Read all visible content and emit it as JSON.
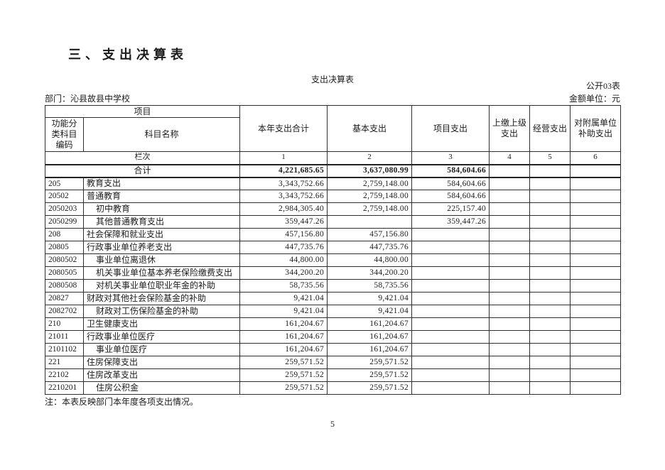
{
  "page": {
    "section_title": "三、支出决算表",
    "table_title": "支出决算表",
    "form_code": "公开03表",
    "department": "部门：沁县故县中学校",
    "unit": "金额单位：元",
    "note": "注：本表反映部门本年度各项支出情况。",
    "page_number": "5"
  },
  "table": {
    "header": {
      "project": "项目",
      "code": "功能分类科目编码",
      "subject_name": "科目名称",
      "col_total": "本年支出合计",
      "col_basic": "基本支出",
      "col_project": "项目支出",
      "col_upper": "上缴上级支出",
      "col_operating": "经营支出",
      "col_subsidy": "对附属单位补助支出",
      "row_label": "栏次",
      "column_numbers": [
        "1",
        "2",
        "3",
        "4",
        "5",
        "6"
      ]
    },
    "total_row": {
      "label": "合计",
      "values": [
        "4,221,685.65",
        "3,637,080.99",
        "584,604.66",
        "",
        "",
        ""
      ]
    },
    "rows": [
      {
        "code": "205",
        "name": "教育支出",
        "indent": 0,
        "values": [
          "3,343,752.66",
          "2,759,148.00",
          "584,604.66",
          "",
          "",
          ""
        ]
      },
      {
        "code": "20502",
        "name": "普通教育",
        "indent": 0,
        "values": [
          "3,343,752.66",
          "2,759,148.00",
          "584,604.66",
          "",
          "",
          ""
        ]
      },
      {
        "code": "2050203",
        "name": "初中教育",
        "indent": 1,
        "values": [
          "2,984,305.40",
          "2,759,148.00",
          "225,157.40",
          "",
          "",
          ""
        ]
      },
      {
        "code": "2050299",
        "name": "其他普通教育支出",
        "indent": 1,
        "values": [
          "359,447.26",
          "",
          "359,447.26",
          "",
          "",
          ""
        ]
      },
      {
        "code": "208",
        "name": "社会保障和就业支出",
        "indent": 0,
        "values": [
          "457,156.80",
          "457,156.80",
          "",
          "",
          "",
          ""
        ]
      },
      {
        "code": "20805",
        "name": "行政事业单位养老支出",
        "indent": 0,
        "values": [
          "447,735.76",
          "447,735.76",
          "",
          "",
          "",
          ""
        ]
      },
      {
        "code": "2080502",
        "name": "事业单位离退休",
        "indent": 1,
        "values": [
          "44,800.00",
          "44,800.00",
          "",
          "",
          "",
          ""
        ]
      },
      {
        "code": "2080505",
        "name": "机关事业单位基本养老保险缴费支出",
        "indent": 1,
        "values": [
          "344,200.20",
          "344,200.20",
          "",
          "",
          "",
          ""
        ]
      },
      {
        "code": "2080508",
        "name": "对机关事业单位职业年金的补助",
        "indent": 1,
        "values": [
          "58,735.56",
          "58,735.56",
          "",
          "",
          "",
          ""
        ]
      },
      {
        "code": "20827",
        "name": "财政对其他社会保险基金的补助",
        "indent": 0,
        "values": [
          "9,421.04",
          "9,421.04",
          "",
          "",
          "",
          ""
        ]
      },
      {
        "code": "2082702",
        "name": "财政对工伤保险基金的补助",
        "indent": 1,
        "values": [
          "9,421.04",
          "9,421.04",
          "",
          "",
          "",
          ""
        ]
      },
      {
        "code": "210",
        "name": "卫生健康支出",
        "indent": 0,
        "values": [
          "161,204.67",
          "161,204.67",
          "",
          "",
          "",
          ""
        ]
      },
      {
        "code": "21011",
        "name": "行政事业单位医疗",
        "indent": 0,
        "values": [
          "161,204.67",
          "161,204.67",
          "",
          "",
          "",
          ""
        ]
      },
      {
        "code": "2101102",
        "name": "事业单位医疗",
        "indent": 1,
        "values": [
          "161,204.67",
          "161,204.67",
          "",
          "",
          "",
          ""
        ]
      },
      {
        "code": "221",
        "name": "住房保障支出",
        "indent": 0,
        "values": [
          "259,571.52",
          "259,571.52",
          "",
          "",
          "",
          ""
        ]
      },
      {
        "code": "22102",
        "name": "住房改革支出",
        "indent": 0,
        "values": [
          "259,571.52",
          "259,571.52",
          "",
          "",
          "",
          ""
        ]
      },
      {
        "code": "2210201",
        "name": "住房公积金",
        "indent": 1,
        "values": [
          "259,571.52",
          "259,571.52",
          "",
          "",
          "",
          ""
        ]
      }
    ]
  }
}
